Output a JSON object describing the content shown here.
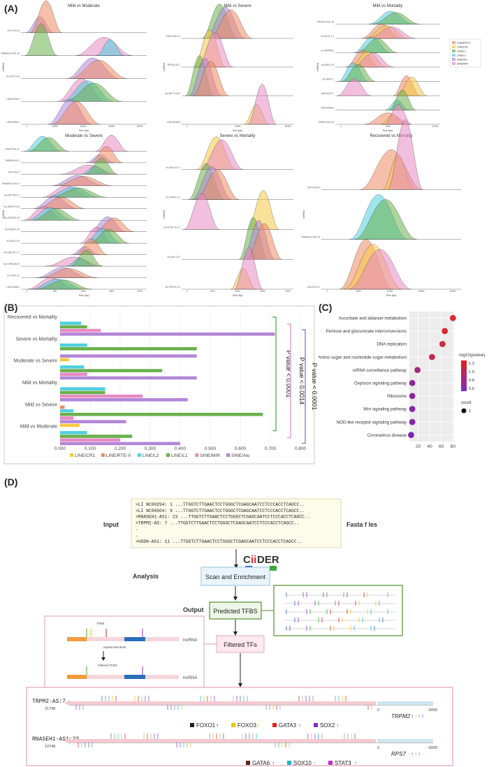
{
  "panels": {
    "A": "(A)",
    "B": "(B)",
    "C": "(C)",
    "D": "(D)"
  },
  "panelA": {
    "subplots": [
      {
        "title": "Mild vs Moderate",
        "ylabel": "lncRNA",
        "xlabel": "Size (bp)",
        "rows": [
          "UFL1-AS1:5",
          "RNASEH1-AS1:23",
          "lnc-MTTF.S.6",
          "LINC00294:6",
          "LINC00504:1"
        ],
        "ticks": [
          "0",
          "10000",
          "20000",
          "30000",
          "40000"
        ]
      },
      {
        "title": "Mild vs Severe",
        "ylabel": "lncRNA",
        "xlabel": "Size (bp)",
        "rows": [
          "UGDH-AS1:11",
          "TRPM2-AS:7",
          "lnc-METTL8:10",
          "LINC00294:6"
        ],
        "ticks": [
          "0",
          "10000",
          "20000"
        ]
      },
      {
        "title": "Mild vs Mortality",
        "ylabel": "lncRNA",
        "xlabel": "Size (bp)",
        "rows": [
          "RASSF1-AS1:18",
          "lnc-NYX1.2:1",
          "lnc-SRPRB.6",
          "lnc-MEIL.3:6",
          "lnc-NRP4:1",
          "LINC00337:1",
          "LINC00469:5",
          "EDNRY-AS1:18"
        ],
        "ticks": [
          "0",
          "5000",
          "10000"
        ]
      },
      {
        "title": "Moderate vs Severe",
        "ylabel": "lncRNA",
        "xlabel": "Size (bp)",
        "rows": [
          "UGDH-AS1:11",
          "TMEM9-AS1:1",
          "SOX-AS1:3",
          "RNASEH1-AS1:2",
          "lnc-ZNF706.3:1",
          "lnc-SAP30.3:16",
          "lnc-RASSF1:23",
          "lnc-PEER1.1:5",
          "lnc-NLK.2:13",
          "lnc-GBP1P1:1:1",
          "lnc-CHRNA5:10",
          "lnc-DKK1:11",
          "LINC00485:2"
        ],
        "ticks": [
          "0",
          "500",
          "1000",
          "1500",
          "2000"
        ]
      },
      {
        "title": "Severe vs Mortality",
        "ylabel": "lncRNA",
        "xlabel": "Size (bp)",
        "rows": [
          "lnc-PALLD.2:1",
          "lnc-APAF1:2:1",
          "lnc-ACHE:16.1:2",
          "lnc-NLK.2:13",
          "lnc-PRKG1:2:3"
        ],
        "ticks": [
          "0",
          "1000",
          "2000",
          "3000",
          "4000"
        ]
      },
      {
        "title": "Recovered vs Mortality",
        "ylabel": "lncRNA",
        "xlabel": "Size (bp)",
        "rows": [
          "SOX1-AS1:6",
          "RNASEH1-AS1:23",
          "LINC01711:1"
        ],
        "ticks": [
          "0",
          "5000",
          "10000",
          "15000",
          "20000"
        ]
      }
    ],
    "legend": [
      "LINE/RTE-X",
      "LINE/CR1",
      "LINE/L1",
      "LINE/L2",
      "SINE/Alu",
      "SINE/MIR"
    ]
  },
  "panelB": {
    "chart_data": {
      "type": "bar",
      "orientation": "horizontal",
      "categories": [
        "Recovered vs Mortality",
        "Severe vs Mortality",
        "Moderate vs Severe",
        "Mild vs Mortality",
        "Mild vs Severe",
        "Mild vs Moderate"
      ],
      "series": [
        {
          "name": "LINE/CR1",
          "color": "#f6c945",
          "values": [
            0,
            0,
            0.03,
            0,
            0,
            0.065
          ]
        },
        {
          "name": "LINE/RTE-X",
          "color": "#ef8a62",
          "values": [
            0,
            0,
            0,
            0,
            0.015,
            0
          ]
        },
        {
          "name": "LINE/L2",
          "color": "#4fd0e0",
          "values": [
            0.07,
            0.09,
            0.08,
            0.15,
            0.045,
            0.09
          ]
        },
        {
          "name": "LINE/L1",
          "color": "#6ab04c",
          "values": [
            0.09,
            0.455,
            0.34,
            0.15,
            0.675,
            0.24
          ]
        },
        {
          "name": "SINE/MIR",
          "color": "#e78ac3",
          "values": [
            0.135,
            0,
            0.09,
            0.275,
            0.045,
            0.2
          ]
        },
        {
          "name": "SINE/Alu",
          "color": "#b386d8",
          "values": [
            0.715,
            0.455,
            0.455,
            0.425,
            0.22,
            0.4
          ]
        }
      ],
      "xlim": [
        0,
        0.8
      ],
      "ticks": [
        "0.000",
        "0.100",
        "0.200",
        "0.300",
        "0.400",
        "0.500",
        "0.600",
        "0.700",
        "0.800"
      ],
      "annotations": [
        "P value < 0.0001",
        "P value < 0.0014",
        "P value < 0.0001"
      ]
    }
  },
  "panelC": {
    "chart_data": {
      "type": "scatter",
      "categories": [
        "Ascorbate and aldarate metabolism",
        "Pentose and glucuronate interconversions",
        "DNA replication",
        "Amino sugar and nucleotide sugar metabolism",
        "mRNA surveillance pathway",
        "Oxytocin signaling pathway",
        "Ribosome",
        "Wnt signaling pathway",
        "NOD-like receptor signaling pathway",
        "Coronavirus disease"
      ],
      "x": [
        80,
        66,
        62,
        44,
        19,
        10,
        10,
        10,
        10,
        8
      ],
      "pvalue_level": [
        1.3,
        1.25,
        1.2,
        1.1,
        0.8,
        0.65,
        0.63,
        0.62,
        0.6,
        0.55
      ],
      "ticks": [
        "20",
        "40",
        "60",
        "80"
      ],
      "xlim": [
        5,
        82
      ],
      "legend_title": "-log10(pvalue)",
      "legend_ticks": [
        "1.2",
        "1.0",
        "0.8",
        "0.6"
      ],
      "size_title": "count",
      "size_value": "1"
    }
  },
  "panelD": {
    "input_label": "Input",
    "analysis_label": "Analysis",
    "output_label": "Output",
    "fasta_label": "Fasta f les",
    "fasta_lines": [
      ">LI NC00294: 1 ...TTGGTCTTGAACTCCTGGGCTCGAGCAATCCTCCCACCTCAGCC..",
      ">LI NC00504: 9 ...TTGGTCTTGAACTCCTGGGCTCGAGCAATCCTCCCACCTCAGCC..",
      ">RNASEH1-AS1: 23 ...TTGGTCTTGAACTCCTGGGCTCGAGCAATCCTCCCACCTCAGCC..",
      ">TRPM2-AS: 7 ...TTGGTCTTGAACTCCTGGGCTCGAGCAATCCTCCCACCTCAGCC..",
      ".",
      ".",
      ">UGDH-AS1: 11 ...TTGGTCTTGAACTCCTGGGCTCGAGCAATCCTCCCACCTCAGCC.."
    ],
    "tool_name_a": "C",
    "tool_name_b": "ii",
    "tool_name_c": "DER",
    "scan_box": "Scan and Enrichment",
    "predicted_box": "Predicted TFBS",
    "filtered_box": "Filtered TFs",
    "schematic": {
      "tfbs": "TFBS",
      "repeat": "repeat elements",
      "filtered": "Filtered TFBS",
      "lncrna_top": "lncRNA",
      "lncrna_bottom": "lncRNA"
    },
    "track1": {
      "name": "TRPM2-AS:7",
      "start": "21798",
      "zero": "0",
      "end": "-5000",
      "gene": "TRPM2"
    },
    "track2": {
      "name": "RNASEH1-AS1:23",
      "start": "10748",
      "zero": "0",
      "end": "-5000",
      "gene": "RPS7"
    },
    "tf_legend1": [
      {
        "name": "FOXO1",
        "color": "#2b1a12"
      },
      {
        "name": "FOXO3",
        "color": "#f2c500"
      },
      {
        "name": "GATA3",
        "color": "#e3211c"
      },
      {
        "name": "SOX2",
        "color": "#8d2cc9"
      }
    ],
    "tf_legend2": [
      {
        "name": "GATA6",
        "color": "#5a2a16"
      },
      {
        "name": "SOX10",
        "color": "#1fb7c9"
      },
      {
        "name": "STAT3",
        "color": "#c12bd1"
      }
    ],
    "arrow": "↑"
  }
}
